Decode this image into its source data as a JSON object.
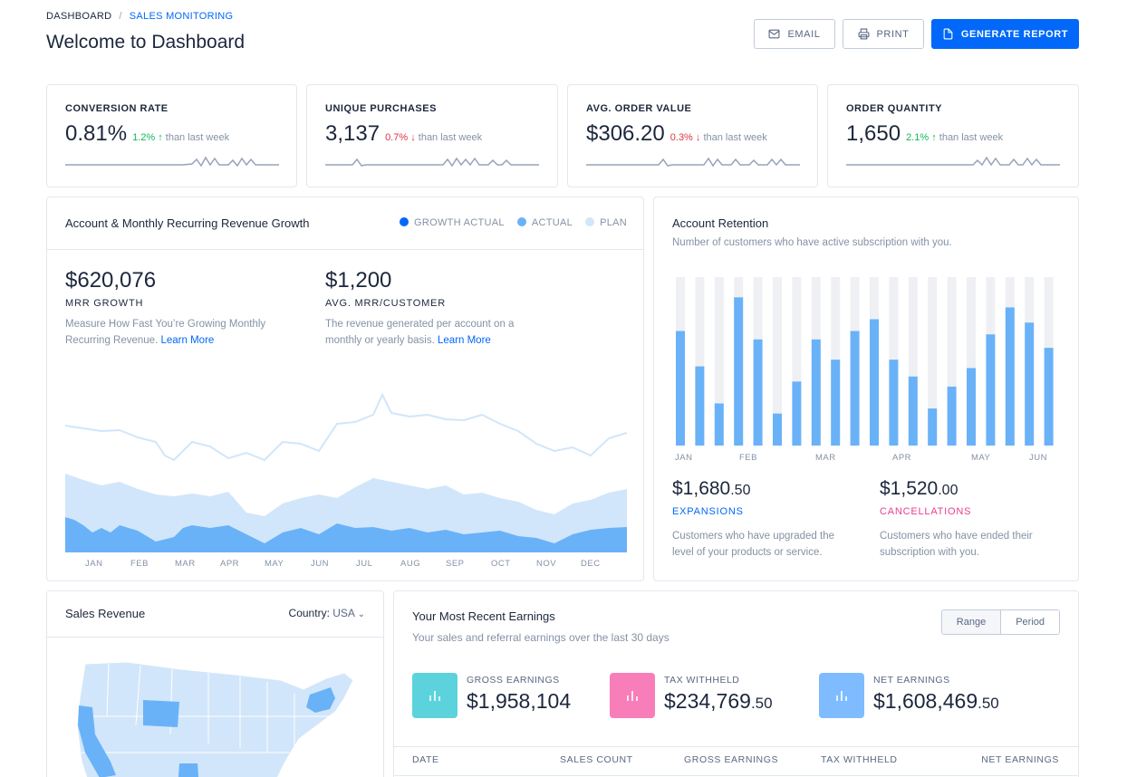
{
  "breadcrumb": {
    "root": "DASHBOARD",
    "separator": "/",
    "current": "SALES MONITORING"
  },
  "page_title": "Welcome to Dashboard",
  "toolbar": {
    "email_label": "EMAIL",
    "print_label": "PRINT",
    "generate_label": "GENERATE REPORT"
  },
  "kpis": [
    {
      "label": "CONVERSION RATE",
      "value": "0.81%",
      "change": "1.2%",
      "direction": "up",
      "suffix": "than last week"
    },
    {
      "label": "UNIQUE PURCHASES",
      "value": "3,137",
      "change": "0.7%",
      "direction": "down",
      "suffix": "than last week"
    },
    {
      "label": "AVG. ORDER VALUE",
      "value": "$306.20",
      "change": "0.3%",
      "direction": "down",
      "suffix": "than last week"
    },
    {
      "label": "ORDER QUANTITY",
      "value": "1,650",
      "change": "2.1%",
      "direction": "up",
      "suffix": "than last week"
    }
  ],
  "mrr": {
    "title": "Account & Monthly Recurring Revenue Growth",
    "legend": [
      "GROWTH ACTUAL",
      "ACTUAL",
      "PLAN"
    ],
    "legend_colors": [
      "#0168fa",
      "#69b2f8",
      "#d1e6fa"
    ],
    "stat1": {
      "value": "$620,076",
      "label": "MRR GROWTH",
      "desc": "Measure How Fast You’re Growing Monthly Recurring Revenue.",
      "link": "Learn More"
    },
    "stat2": {
      "value": "$1,200",
      "label": "AVG. MRR/CUSTOMER",
      "desc": "The revenue generated per account on a monthly or yearly basis.",
      "link": "Learn More"
    },
    "months": [
      "JAN",
      "FEB",
      "MAR",
      "APR",
      "MAY",
      "JUN",
      "JUL",
      "AUG",
      "SEP",
      "OCT",
      "NOV",
      "DEC"
    ]
  },
  "retention": {
    "title": "Account Retention",
    "subtitle": "Number of customers who have active subscription with you.",
    "months": [
      "JAN",
      "FEB",
      "MAR",
      "APR",
      "MAY",
      "JUN"
    ],
    "expansions": {
      "value": "$1,680",
      "cents": ".50",
      "label": "EXPANSIONS",
      "desc": "Customers who have upgraded the level of your products or service."
    },
    "cancellations": {
      "value": "$1,520",
      "cents": ".00",
      "label": "CANCELLATIONS",
      "desc": "Customers who have ended their subscription with you."
    }
  },
  "sales_revenue": {
    "title": "Sales Revenue",
    "country_label": "Country:",
    "country_value": "USA"
  },
  "earnings": {
    "title": "Your Most Recent Earnings",
    "subtitle": "Your sales and referral earnings over the last 30 days",
    "toggle": [
      "Range",
      "Period"
    ],
    "items": [
      {
        "label": "GROSS EARNINGS",
        "value": "$1,958,104",
        "cents": "",
        "color": "#5cd3dc"
      },
      {
        "label": "TAX WITHHELD",
        "value": "$234,769",
        "cents": ".50",
        "color": "#f77eb9"
      },
      {
        "label": "NET EARNINGS",
        "value": "$1,608,469",
        "cents": ".50",
        "color": "#7ebcff"
      }
    ],
    "columns": [
      "DATE",
      "SALES COUNT",
      "GROSS EARNINGS",
      "TAX WITHHELD",
      "NET EARNINGS"
    ]
  },
  "chart_data": [
    {
      "type": "bar",
      "title": "Account Retention",
      "categories": [
        "1",
        "2",
        "3",
        "4",
        "5",
        "6",
        "7",
        "8",
        "9",
        "10",
        "11",
        "12",
        "13",
        "14",
        "15",
        "16",
        "17",
        "18",
        "19",
        "20"
      ],
      "series": [
        {
          "values": [
            0.68,
            0.47,
            0.25,
            0.88,
            0.63,
            0.19,
            0.38,
            0.63,
            0.51,
            0.68,
            0.75,
            0.51,
            0.41,
            0.22,
            0.35,
            0.46,
            0.66,
            0.82,
            0.73,
            0.58
          ]
        }
      ],
      "ylim": [
        0,
        1
      ],
      "x_tick_labels": [
        "JAN",
        "FEB",
        "MAR",
        "APR",
        "MAY",
        "JUN"
      ]
    }
  ]
}
